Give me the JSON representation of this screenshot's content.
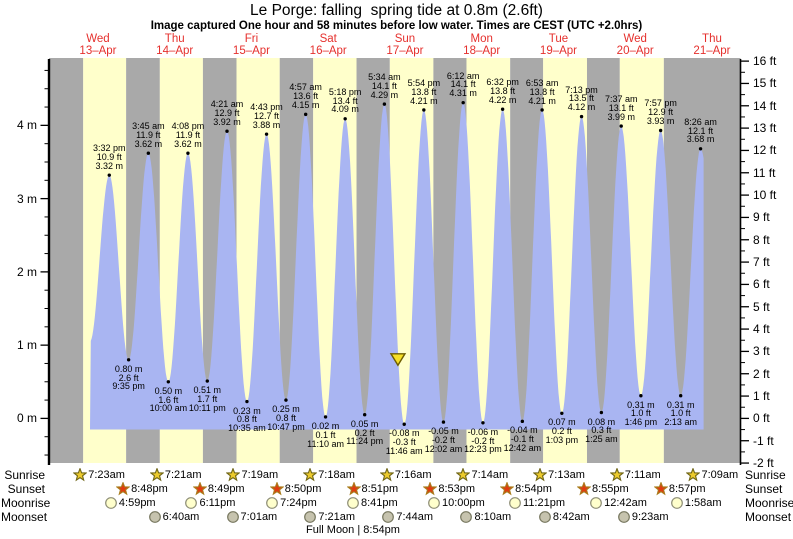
{
  "page": {
    "title": "Le Porge: falling  spring tide at 0.8m (2.6ft)",
    "subtitle": "Image captured One hour and 58 minutes before low water. Times are CEST (UTC +2.0hrs)"
  },
  "chart_data": {
    "type": "area",
    "title": "Le Porge: falling  spring tide at 0.8m (2.6ft)",
    "ylabel_left_unit": "m",
    "ylabel_right_unit": "ft",
    "y_axis_left": {
      "labels": [
        "4 m",
        "3 m",
        "2 m",
        "1 m",
        "0 m"
      ]
    },
    "y_axis_right": {
      "labels": [
        "16 ft",
        "15 ft",
        "14 ft",
        "13 ft",
        "12 ft",
        "11 ft",
        "10 ft",
        "9 ft",
        "8 ft",
        "7 ft",
        "6 ft",
        "5 ft",
        "4 ft",
        "3 ft",
        "2 ft",
        "1 ft",
        "0 ft",
        "-1 ft",
        "-2 ft"
      ]
    },
    "days": [
      {
        "weekday": "Wed",
        "date": "13–Apr"
      },
      {
        "weekday": "Thu",
        "date": "14–Apr"
      },
      {
        "weekday": "Fri",
        "date": "15–Apr"
      },
      {
        "weekday": "Sat",
        "date": "16–Apr"
      },
      {
        "weekday": "Sun",
        "date": "17–Apr"
      },
      {
        "weekday": "Mon",
        "date": "18–Apr"
      },
      {
        "weekday": "Tue",
        "date": "19–Apr"
      },
      {
        "weekday": "Wed",
        "date": "20–Apr"
      },
      {
        "weekday": "Thu",
        "date": "21–Apr"
      }
    ],
    "high_tides": [
      {
        "day": 0,
        "time": "3:32 pm",
        "height_ft": "10.9 ft",
        "height_m": "3.32 m"
      },
      {
        "day": 1,
        "time": "3:45 am",
        "height_ft": "11.9 ft",
        "height_m": "3.62 m"
      },
      {
        "day": 1,
        "time": "4:08 pm",
        "height_ft": "11.9 ft",
        "height_m": "3.62 m"
      },
      {
        "day": 2,
        "time": "4:21 am",
        "height_ft": "12.9 ft",
        "height_m": "3.92 m"
      },
      {
        "day": 2,
        "time": "4:43 pm",
        "height_ft": "12.7 ft",
        "height_m": "3.88 m"
      },
      {
        "day": 3,
        "time": "4:57 am",
        "height_ft": "13.6 ft",
        "height_m": "4.15 m"
      },
      {
        "day": 3,
        "time": "5:18 pm",
        "height_ft": "13.4 ft",
        "height_m": "4.09 m"
      },
      {
        "day": 4,
        "time": "5:34 am",
        "height_ft": "14.1 ft",
        "height_m": "4.29 m"
      },
      {
        "day": 4,
        "time": "5:54 pm",
        "height_ft": "13.8 ft",
        "height_m": "4.21 m"
      },
      {
        "day": 5,
        "time": "6:12 am",
        "height_ft": "14.1 ft",
        "height_m": "4.31 m"
      },
      {
        "day": 5,
        "time": "6:32 pm",
        "height_ft": "13.8 ft",
        "height_m": "4.22 m"
      },
      {
        "day": 6,
        "time": "6:53 am",
        "height_ft": "13.8 ft",
        "height_m": "4.21 m"
      },
      {
        "day": 6,
        "time": "7:13 pm",
        "height_ft": "13.5 ft",
        "height_m": "4.12 m"
      },
      {
        "day": 7,
        "time": "7:37 am",
        "height_ft": "13.1 ft",
        "height_m": "3.99 m"
      },
      {
        "day": 7,
        "time": "7:57 pm",
        "height_ft": "12.9 ft",
        "height_m": "3.93 m"
      },
      {
        "day": 8,
        "time": "8:26 am",
        "height_ft": "12.1 ft",
        "height_m": "3.68 m"
      }
    ],
    "low_tides": [
      {
        "day": 0,
        "height_m": "0.80 m",
        "height_ft": "2.6 ft",
        "time": "9:35 pm"
      },
      {
        "day": 1,
        "height_m": "0.50 m",
        "height_ft": "1.6 ft",
        "time": "10:00 am"
      },
      {
        "day": 1,
        "height_m": "0.51 m",
        "height_ft": "1.7 ft",
        "time": "10:11 pm"
      },
      {
        "day": 2,
        "height_m": "0.23 m",
        "height_ft": "0.8 ft",
        "time": "10:35 am"
      },
      {
        "day": 2,
        "height_m": "0.25 m",
        "height_ft": "0.8 ft",
        "time": "10:47 pm"
      },
      {
        "day": 3,
        "height_m": "0.02 m",
        "height_ft": "0.1 ft",
        "time": "11:10 am"
      },
      {
        "day": 3,
        "height_m": "0.05 m",
        "height_ft": "0.2 ft",
        "time": "11:24 pm"
      },
      {
        "day": 4,
        "height_m": "-0.08 m",
        "height_ft": "-0.3 ft",
        "time": "11:46 am"
      },
      {
        "day": 5,
        "height_m": "-0.05 m",
        "height_ft": "-0.2 ft",
        "time": "12:02 am"
      },
      {
        "day": 5,
        "height_m": "-0.06 m",
        "height_ft": "-0.2 ft",
        "time": "12:23 pm"
      },
      {
        "day": 6,
        "height_m": "-0.04 m",
        "height_ft": "-0.1 ft",
        "time": "12:42 am"
      },
      {
        "day": 6,
        "height_m": "0.07 m",
        "height_ft": "0.2 ft",
        "time": "1:03 pm"
      },
      {
        "day": 7,
        "height_m": "0.08 m",
        "height_ft": "0.3 ft",
        "time": "1:25 am"
      },
      {
        "day": 7,
        "height_m": "0.31 m",
        "height_ft": "1.0 ft",
        "time": "1:46 pm"
      },
      {
        "day": 8,
        "height_m": "0.31 m",
        "height_ft": "1.0 ft",
        "time": "2:13 am"
      }
    ],
    "current_marker": {
      "day": 4,
      "time": "9:48 am",
      "height_m": 0.8
    },
    "colors": {
      "day_band": "#ffffcb",
      "night_band": "#a9a9a9",
      "tide_area": "#a9b5f2",
      "day_label_red": "#e5302d",
      "annotation_text": "#000000",
      "marker_fill": "#f6df26",
      "marker_stroke": "#6e5d00"
    }
  },
  "astro": {
    "rows": [
      {
        "label": "Sunrise",
        "icon": "sunrise-star-icon",
        "events": [
          {
            "day": 0,
            "time": "7:23am"
          },
          {
            "day": 1,
            "time": "7:21am"
          },
          {
            "day": 2,
            "time": "7:19am"
          },
          {
            "day": 3,
            "time": "7:18am"
          },
          {
            "day": 4,
            "time": "7:16am"
          },
          {
            "day": 5,
            "time": "7:14am"
          },
          {
            "day": 6,
            "time": "7:13am"
          },
          {
            "day": 7,
            "time": "7:11am"
          },
          {
            "day": 8,
            "time": "7:09am"
          }
        ]
      },
      {
        "label": "Sunset",
        "icon": "sunset-star-icon",
        "events": [
          {
            "day": 0,
            "time": "8:48pm"
          },
          {
            "day": 1,
            "time": "8:49pm"
          },
          {
            "day": 2,
            "time": "8:50pm"
          },
          {
            "day": 3,
            "time": "8:51pm"
          },
          {
            "day": 4,
            "time": "8:53pm"
          },
          {
            "day": 5,
            "time": "8:54pm"
          },
          {
            "day": 6,
            "time": "8:55pm"
          },
          {
            "day": 7,
            "time": "8:57pm"
          }
        ]
      },
      {
        "label": "Moonrise",
        "icon": "moonrise-icon",
        "events": [
          {
            "day": 0,
            "time": "4:59pm"
          },
          {
            "day": 1,
            "time": "6:11pm"
          },
          {
            "day": 2,
            "time": "7:24pm"
          },
          {
            "day": 3,
            "time": "8:41pm"
          },
          {
            "day": 4,
            "time": "10:00pm"
          },
          {
            "day": 5,
            "time": "11:21pm"
          },
          {
            "day": 7,
            "time": "12:42am"
          },
          {
            "day": 8,
            "time": "1:58am"
          }
        ]
      },
      {
        "label": "Moonset",
        "icon": "moonset-icon",
        "events": [
          {
            "day": 1,
            "time": "6:40am"
          },
          {
            "day": 2,
            "time": "7:01am"
          },
          {
            "day": 3,
            "time": "7:21am"
          },
          {
            "day": 4,
            "time": "7:44am"
          },
          {
            "day": 5,
            "time": "8:10am"
          },
          {
            "day": 6,
            "time": "8:42am"
          },
          {
            "day": 7,
            "time": "9:23am"
          }
        ]
      }
    ],
    "icon_colors": {
      "sunrise_fill": "#ecca2d",
      "sunrise_stroke": "#6e6414",
      "sunset_fill": "#e03c10",
      "sunset_stroke": "#a87d1c",
      "moonrise_fill": "#ffffcc",
      "moonrise_stroke": "#8e8e76",
      "moonset_fill": "#c6c3ae",
      "moonset_stroke": "#77775f"
    },
    "full_moon": "Full Moon | 8:54pm"
  }
}
